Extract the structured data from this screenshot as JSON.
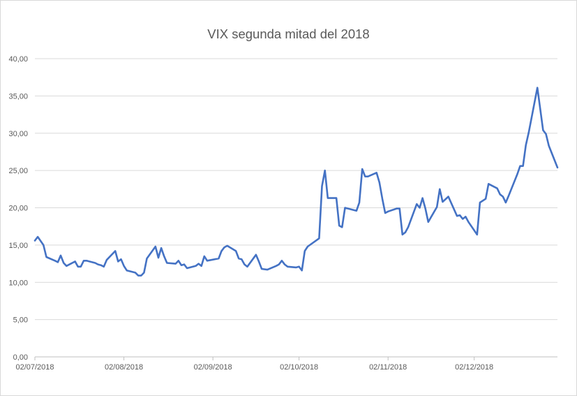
{
  "chart_data": {
    "type": "line",
    "title": "VIX segunda mitad del 2018",
    "xlabel": "",
    "ylabel": "",
    "ylim": [
      0,
      40
    ],
    "y_ticks": [
      "0,00",
      "5,00",
      "10,00",
      "15,00",
      "20,00",
      "25,00",
      "30,00",
      "35,00",
      "40,00"
    ],
    "x_range": [
      "2018-07-02",
      "2018-12-31"
    ],
    "x_ticks": [
      {
        "date": "2018-07-02",
        "label": "02/07/2018"
      },
      {
        "date": "2018-08-02",
        "label": "02/08/2018"
      },
      {
        "date": "2018-09-02",
        "label": "02/09/2018"
      },
      {
        "date": "2018-10-02",
        "label": "02/10/2018"
      },
      {
        "date": "2018-11-02",
        "label": "02/11/2018"
      },
      {
        "date": "2018-12-02",
        "label": "02/12/2018"
      }
    ],
    "grid": "horizontal",
    "legend": "none",
    "series": [
      {
        "color": "#4472c4",
        "points": [
          [
            "2018-07-02",
            15.6
          ],
          [
            "2018-07-03",
            16.1
          ],
          [
            "2018-07-05",
            15.0
          ],
          [
            "2018-07-06",
            13.4
          ],
          [
            "2018-07-09",
            12.9
          ],
          [
            "2018-07-10",
            12.7
          ],
          [
            "2018-07-11",
            13.6
          ],
          [
            "2018-07-12",
            12.6
          ],
          [
            "2018-07-13",
            12.2
          ],
          [
            "2018-07-16",
            12.8
          ],
          [
            "2018-07-17",
            12.1
          ],
          [
            "2018-07-18",
            12.1
          ],
          [
            "2018-07-19",
            12.9
          ],
          [
            "2018-07-20",
            12.9
          ],
          [
            "2018-07-23",
            12.6
          ],
          [
            "2018-07-24",
            12.4
          ],
          [
            "2018-07-25",
            12.3
          ],
          [
            "2018-07-26",
            12.1
          ],
          [
            "2018-07-27",
            13.0
          ],
          [
            "2018-07-30",
            14.2
          ],
          [
            "2018-07-31",
            12.8
          ],
          [
            "2018-08-01",
            13.1
          ],
          [
            "2018-08-02",
            12.2
          ],
          [
            "2018-08-03",
            11.6
          ],
          [
            "2018-08-06",
            11.3
          ],
          [
            "2018-08-07",
            10.9
          ],
          [
            "2018-08-08",
            10.9
          ],
          [
            "2018-08-09",
            11.3
          ],
          [
            "2018-08-10",
            13.2
          ],
          [
            "2018-08-13",
            14.8
          ],
          [
            "2018-08-14",
            13.3
          ],
          [
            "2018-08-15",
            14.6
          ],
          [
            "2018-08-16",
            13.5
          ],
          [
            "2018-08-17",
            12.6
          ],
          [
            "2018-08-20",
            12.5
          ],
          [
            "2018-08-21",
            12.9
          ],
          [
            "2018-08-22",
            12.3
          ],
          [
            "2018-08-23",
            12.4
          ],
          [
            "2018-08-24",
            11.9
          ],
          [
            "2018-08-27",
            12.2
          ],
          [
            "2018-08-28",
            12.5
          ],
          [
            "2018-08-29",
            12.2
          ],
          [
            "2018-08-30",
            13.5
          ],
          [
            "2018-08-31",
            12.9
          ],
          [
            "2018-09-04",
            13.2
          ],
          [
            "2018-09-05",
            14.2
          ],
          [
            "2018-09-06",
            14.7
          ],
          [
            "2018-09-07",
            14.9
          ],
          [
            "2018-09-10",
            14.2
          ],
          [
            "2018-09-11",
            13.2
          ],
          [
            "2018-09-12",
            13.1
          ],
          [
            "2018-09-13",
            12.4
          ],
          [
            "2018-09-14",
            12.1
          ],
          [
            "2018-09-17",
            13.7
          ],
          [
            "2018-09-18",
            12.8
          ],
          [
            "2018-09-19",
            11.8
          ],
          [
            "2018-09-21",
            11.7
          ],
          [
            "2018-09-24",
            12.2
          ],
          [
            "2018-09-25",
            12.4
          ],
          [
            "2018-09-26",
            12.9
          ],
          [
            "2018-09-27",
            12.4
          ],
          [
            "2018-09-28",
            12.1
          ],
          [
            "2018-10-01",
            12.0
          ],
          [
            "2018-10-02",
            12.1
          ],
          [
            "2018-10-03",
            11.6
          ],
          [
            "2018-10-04",
            14.2
          ],
          [
            "2018-10-05",
            14.8
          ],
          [
            "2018-10-09",
            15.9
          ],
          [
            "2018-10-10",
            22.9
          ],
          [
            "2018-10-11",
            25.0
          ],
          [
            "2018-10-12",
            21.3
          ],
          [
            "2018-10-15",
            21.3
          ],
          [
            "2018-10-16",
            17.6
          ],
          [
            "2018-10-17",
            17.4
          ],
          [
            "2018-10-18",
            20.0
          ],
          [
            "2018-10-22",
            19.6
          ],
          [
            "2018-10-23",
            20.7
          ],
          [
            "2018-10-24",
            25.2
          ],
          [
            "2018-10-25",
            24.2
          ],
          [
            "2018-10-26",
            24.2
          ],
          [
            "2018-10-29",
            24.7
          ],
          [
            "2018-10-30",
            23.4
          ],
          [
            "2018-10-31",
            21.2
          ],
          [
            "2018-11-01",
            19.3
          ],
          [
            "2018-11-02",
            19.5
          ],
          [
            "2018-11-05",
            19.9
          ],
          [
            "2018-11-06",
            19.9
          ],
          [
            "2018-11-07",
            16.4
          ],
          [
            "2018-11-08",
            16.7
          ],
          [
            "2018-11-09",
            17.4
          ],
          [
            "2018-11-12",
            20.5
          ],
          [
            "2018-11-13",
            20.0
          ],
          [
            "2018-11-14",
            21.3
          ],
          [
            "2018-11-15",
            19.9
          ],
          [
            "2018-11-16",
            18.1
          ],
          [
            "2018-11-19",
            20.1
          ],
          [
            "2018-11-20",
            22.5
          ],
          [
            "2018-11-21",
            20.8
          ],
          [
            "2018-11-23",
            21.5
          ],
          [
            "2018-11-26",
            18.9
          ],
          [
            "2018-11-27",
            19.0
          ],
          [
            "2018-11-28",
            18.5
          ],
          [
            "2018-11-29",
            18.8
          ],
          [
            "2018-11-30",
            18.1
          ],
          [
            "2018-12-03",
            16.4
          ],
          [
            "2018-12-04",
            20.7
          ],
          [
            "2018-12-06",
            21.2
          ],
          [
            "2018-12-07",
            23.2
          ],
          [
            "2018-12-10",
            22.6
          ],
          [
            "2018-12-11",
            21.8
          ],
          [
            "2018-12-12",
            21.5
          ],
          [
            "2018-12-13",
            20.7
          ],
          [
            "2018-12-14",
            21.6
          ],
          [
            "2018-12-17",
            24.5
          ],
          [
            "2018-12-18",
            25.6
          ],
          [
            "2018-12-19",
            25.6
          ],
          [
            "2018-12-20",
            28.4
          ],
          [
            "2018-12-21",
            30.1
          ],
          [
            "2018-12-24",
            36.1
          ],
          [
            "2018-12-26",
            30.4
          ],
          [
            "2018-12-27",
            29.9
          ],
          [
            "2018-12-28",
            28.3
          ],
          [
            "2018-12-31",
            25.4
          ]
        ]
      }
    ]
  }
}
